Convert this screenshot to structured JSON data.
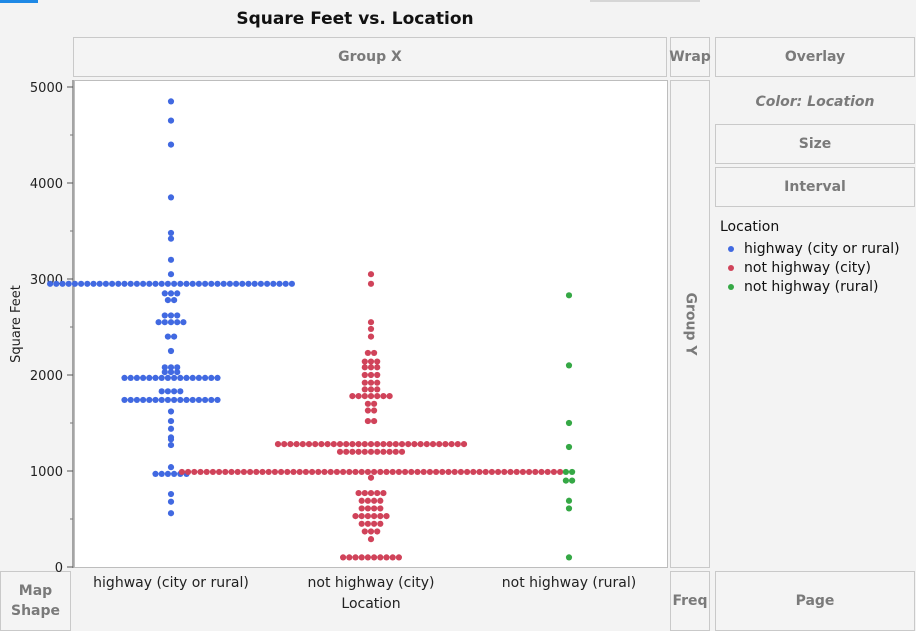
{
  "title": "Square Feet vs. Location",
  "zones": {
    "group_x": "Group X",
    "wrap": "Wrap",
    "overlay": "Overlay",
    "color": "Color: Location",
    "size": "Size",
    "interval": "Interval",
    "group_y": "Group Y",
    "map_shape_line1": "Map",
    "map_shape_line2": "Shape",
    "freq": "Freq",
    "page": "Page"
  },
  "legend": {
    "title": "Location",
    "items": [
      {
        "label": "highway (city or rural)",
        "color": "#4169e1"
      },
      {
        "label": "not highway (city)",
        "color": "#d0435a"
      },
      {
        "label": "not highway (rural)",
        "color": "#35a845"
      }
    ]
  },
  "chart_data": {
    "type": "scatter",
    "title": "Square Feet vs. Location",
    "xlabel": "Location",
    "ylabel": "Square Feet",
    "ylim": [
      0,
      5000
    ],
    "yticks": [
      0,
      1000,
      2000,
      3000,
      4000,
      5000
    ],
    "categories": [
      "highway (city or rural)",
      "not highway (city)",
      "not highway (rural)"
    ],
    "series": [
      {
        "name": "highway (city or rural)",
        "color": "#4169e1",
        "values": [
          4850,
          4650,
          4400,
          3850,
          3480,
          3420,
          3200,
          3050,
          2950,
          2950,
          2950,
          2950,
          2950,
          2950,
          2950,
          2950,
          2950,
          2950,
          2950,
          2950,
          2950,
          2950,
          2950,
          2950,
          2950,
          2950,
          2950,
          2950,
          2950,
          2950,
          2950,
          2950,
          2950,
          2950,
          2950,
          2950,
          2950,
          2950,
          2950,
          2950,
          2950,
          2950,
          2950,
          2950,
          2950,
          2950,
          2950,
          2950,
          2850,
          2850,
          2850,
          2780,
          2780,
          2620,
          2620,
          2620,
          2550,
          2550,
          2550,
          2550,
          2550,
          2400,
          2400,
          2250,
          2080,
          2080,
          2080,
          2030,
          2030,
          2030,
          1970,
          1970,
          1970,
          1970,
          1970,
          1970,
          1970,
          1970,
          1970,
          1970,
          1970,
          1970,
          1970,
          1970,
          1970,
          1970,
          1830,
          1830,
          1830,
          1830,
          1740,
          1740,
          1740,
          1740,
          1740,
          1740,
          1740,
          1740,
          1740,
          1740,
          1740,
          1740,
          1740,
          1740,
          1740,
          1740,
          1620,
          1520,
          1440,
          1350,
          1330,
          1270,
          1040,
          970,
          970,
          970,
          970,
          970,
          970,
          760,
          680,
          560
        ]
      },
      {
        "name": "not highway (city)",
        "color": "#d0435a",
        "values": [
          3050,
          2950,
          2550,
          2480,
          2400,
          2230,
          2230,
          2140,
          2140,
          2140,
          2080,
          2080,
          2080,
          2000,
          2000,
          2000,
          1920,
          1920,
          1920,
          1850,
          1850,
          1850,
          1780,
          1780,
          1780,
          1780,
          1780,
          1780,
          1780,
          1700,
          1700,
          1630,
          1630,
          1520,
          1520,
          1280,
          1280,
          1280,
          1280,
          1280,
          1280,
          1280,
          1280,
          1280,
          1280,
          1280,
          1280,
          1280,
          1280,
          1280,
          1280,
          1280,
          1280,
          1280,
          1280,
          1280,
          1280,
          1280,
          1280,
          1280,
          1280,
          1280,
          1280,
          1280,
          1280,
          1280,
          1200,
          1200,
          1200,
          1200,
          1200,
          1200,
          1200,
          1200,
          1200,
          1200,
          1200,
          990,
          990,
          990,
          990,
          990,
          990,
          990,
          990,
          990,
          990,
          990,
          990,
          990,
          990,
          990,
          990,
          990,
          990,
          990,
          990,
          990,
          990,
          990,
          990,
          990,
          990,
          990,
          990,
          990,
          990,
          990,
          990,
          990,
          990,
          990,
          990,
          990,
          990,
          990,
          990,
          990,
          990,
          990,
          990,
          990,
          990,
          990,
          990,
          990,
          990,
          990,
          990,
          990,
          990,
          990,
          990,
          990,
          990,
          990,
          990,
          990,
          990,
          930,
          770,
          770,
          770,
          770,
          770,
          690,
          690,
          690,
          690,
          610,
          610,
          610,
          610,
          530,
          530,
          530,
          530,
          530,
          530,
          450,
          450,
          450,
          450,
          370,
          370,
          370,
          290,
          100,
          100,
          100,
          100,
          100,
          100,
          100,
          100,
          100,
          100
        ]
      },
      {
        "name": "not highway (rural)",
        "color": "#35a845",
        "values": [
          2830,
          2100,
          1500,
          1250,
          990,
          990,
          900,
          900,
          690,
          610,
          100
        ]
      }
    ]
  },
  "axis": {
    "y_tick_labels": [
      "0",
      "1000",
      "2000",
      "3000",
      "4000",
      "5000"
    ],
    "x_tick_labels": [
      "highway (city or rural)",
      "not highway (city)",
      "not highway (rural)"
    ],
    "xlabel": "Location",
    "ylabel": "Square Feet"
  }
}
